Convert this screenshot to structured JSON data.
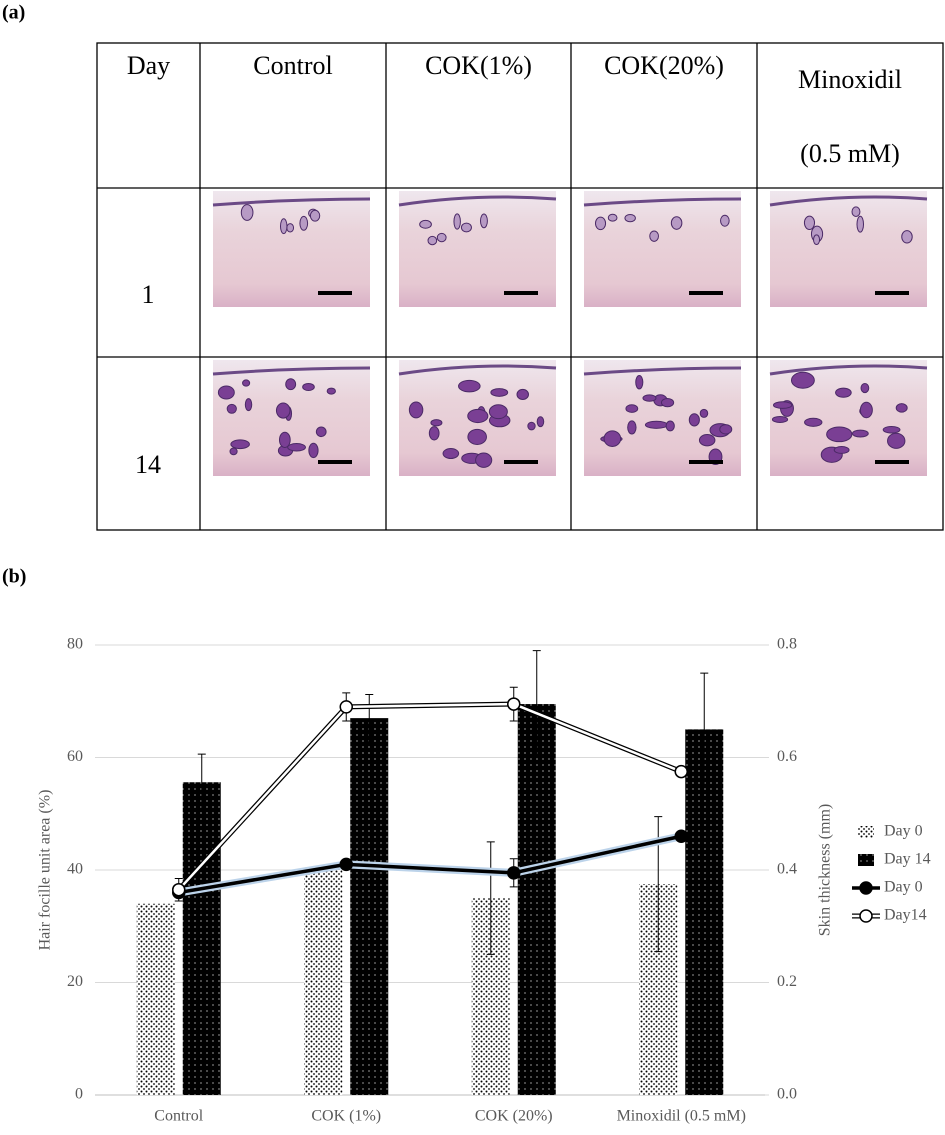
{
  "panel_a": {
    "label": "(a)",
    "table": {
      "header": [
        "Day",
        "Control",
        "COK(1%)",
        "COK(20%)",
        [
          "Minoxidil",
          "(0.5 mM)"
        ]
      ],
      "rows": [
        [
          "1"
        ],
        [
          "14"
        ]
      ]
    }
  },
  "panel_b": {
    "label": "(b)"
  },
  "chart_data": {
    "type": "combo",
    "categories": [
      "Control",
      "COK (1%)",
      "COK (20%)",
      "Minoxidil (0.5 mM)"
    ],
    "y_label": "Hair focille unit area (%)",
    "y2_label": "Skin thickness (mm)",
    "ylim": [
      0,
      80
    ],
    "yticks": [
      0,
      20,
      40,
      60,
      80
    ],
    "y2lim": [
      0,
      0.8
    ],
    "y2ticks": [
      {
        "value": 0,
        "label": "0.0"
      },
      0.2,
      0.4,
      0.6,
      0.8
    ],
    "grid": true,
    "legend": "right",
    "series": [
      {
        "name": "Day 0",
        "kind": "bar",
        "color": "#ffffff",
        "values": [
          34,
          40.5,
          35,
          37.5
        ],
        "errors": [
          null,
          null,
          10,
          12
        ]
      },
      {
        "name": "Day 14",
        "kind": "bar",
        "color": "#000000",
        "values": [
          55.6,
          67,
          69.5,
          65
        ],
        "errors": [
          5,
          4.2,
          9.5,
          10
        ]
      },
      {
        "name": "Day 0",
        "kind": "line",
        "axis": "y2",
        "color": "#000000",
        "values": [
          0.36,
          0.41,
          0.395,
          0.46
        ],
        "errors": [
          null,
          null,
          0.025,
          null
        ]
      },
      {
        "name": "Day14",
        "kind": "line",
        "axis": "y2",
        "color": "#ffffff",
        "values": [
          0.365,
          0.69,
          0.695,
          0.575
        ],
        "errors": [
          0.02,
          0.025,
          0.03,
          null
        ]
      }
    ]
  }
}
